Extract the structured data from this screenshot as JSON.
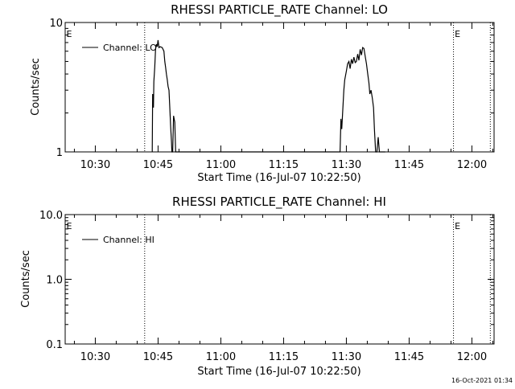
{
  "footer": {
    "timestamp": "16-Oct-2021 01:34"
  },
  "chart_data": [
    {
      "type": "line",
      "title": "RHESSI PARTICLE_RATE Channel: LO",
      "xlabel": "Start Time (16-Jul-07 10:22:50)",
      "ylabel": "Counts/sec",
      "yscale": "log",
      "xlim_min": [
        22.8,
        125.3
      ],
      "ylim": [
        1,
        10
      ],
      "yticks": [
        1,
        10
      ],
      "ytick_labels": [
        "1",
        "10"
      ],
      "xticks_min": [
        30,
        45,
        60,
        75,
        90,
        105,
        120
      ],
      "xtick_labels": [
        "10:30",
        "10:45",
        "11:00",
        "11:15",
        "11:30",
        "11:45",
        "12:00"
      ],
      "vlines_min": [
        41.8,
        115.6,
        124.4
      ],
      "event_markers": [
        {
          "label": "E",
          "x_min": 23.1
        },
        {
          "label": "E",
          "x_min": 115.9
        }
      ],
      "legend": {
        "position": "top-left",
        "entries": [
          "Channel: LO"
        ]
      },
      "series": [
        {
          "name": "Channel: LO",
          "x_min": [
            43.6,
            43.7,
            43.9,
            44.0,
            44.2,
            44.4,
            44.6,
            44.8,
            45.0,
            45.2,
            45.5,
            46.0,
            46.4,
            46.6,
            46.8,
            47.0,
            47.2,
            47.4,
            47.6,
            47.8,
            48.0,
            48.2,
            48.3,
            48.5,
            48.7,
            49.0,
            49.2,
            49.4,
            88.5,
            88.7,
            88.9,
            89.2,
            89.4,
            89.6,
            90.0,
            90.3,
            90.6,
            90.9,
            91.2,
            91.5,
            91.8,
            92.1,
            92.4,
            92.7,
            93.0,
            93.3,
            93.6,
            93.9,
            94.2,
            94.5,
            94.8,
            95.1,
            95.4,
            95.6,
            95.9,
            96.2,
            96.5,
            96.7,
            97.0,
            97.3,
            97.6,
            97.9,
            98.2,
            98.5,
            98.8,
            99.0,
            99.3
          ],
          "y": [
            1.0,
            2.8,
            2.2,
            3.5,
            4.5,
            6.2,
            6.8,
            6.5,
            7.3,
            6.4,
            6.5,
            6.4,
            6.0,
            5.0,
            4.5,
            4.0,
            3.6,
            3.2,
            3.0,
            2.2,
            1.6,
            1.2,
            1.0,
            1.0,
            1.9,
            1.7,
            1.0,
            1.0,
            1.0,
            1.8,
            1.5,
            2.3,
            3.0,
            3.6,
            4.2,
            4.8,
            5.0,
            4.4,
            5.2,
            4.8,
            5.4,
            4.9,
            5.0,
            5.7,
            5.1,
            6.2,
            5.6,
            6.4,
            6.3,
            5.5,
            4.8,
            4.0,
            3.4,
            2.8,
            3.0,
            2.6,
            2.2,
            1.5,
            1.0,
            1.0,
            1.3,
            1.0,
            1.0,
            1.0,
            1.0,
            1.0,
            1.0
          ]
        }
      ]
    },
    {
      "type": "line",
      "title": "RHESSI PARTICLE_RATE Channel: HI",
      "xlabel": "Start Time (16-Jul-07 10:22:50)",
      "ylabel": "Counts/sec",
      "yscale": "log",
      "xlim_min": [
        22.8,
        125.3
      ],
      "ylim": [
        0.1,
        10
      ],
      "yticks": [
        0.1,
        1,
        10
      ],
      "ytick_labels": [
        "0.1",
        "1.0",
        "10.0"
      ],
      "xticks_min": [
        30,
        45,
        60,
        75,
        90,
        105,
        120
      ],
      "xtick_labels": [
        "10:30",
        "10:45",
        "11:00",
        "11:15",
        "11:30",
        "11:45",
        "12:00"
      ],
      "vlines_min": [
        41.8,
        115.6,
        124.4
      ],
      "event_markers": [
        {
          "label": "E",
          "x_min": 23.1
        },
        {
          "label": "E",
          "x_min": 115.9
        }
      ],
      "legend": {
        "position": "top-left",
        "entries": [
          "Channel: HI"
        ]
      },
      "series": [
        {
          "name": "Channel: HI",
          "x_min": [],
          "y": []
        }
      ]
    }
  ]
}
